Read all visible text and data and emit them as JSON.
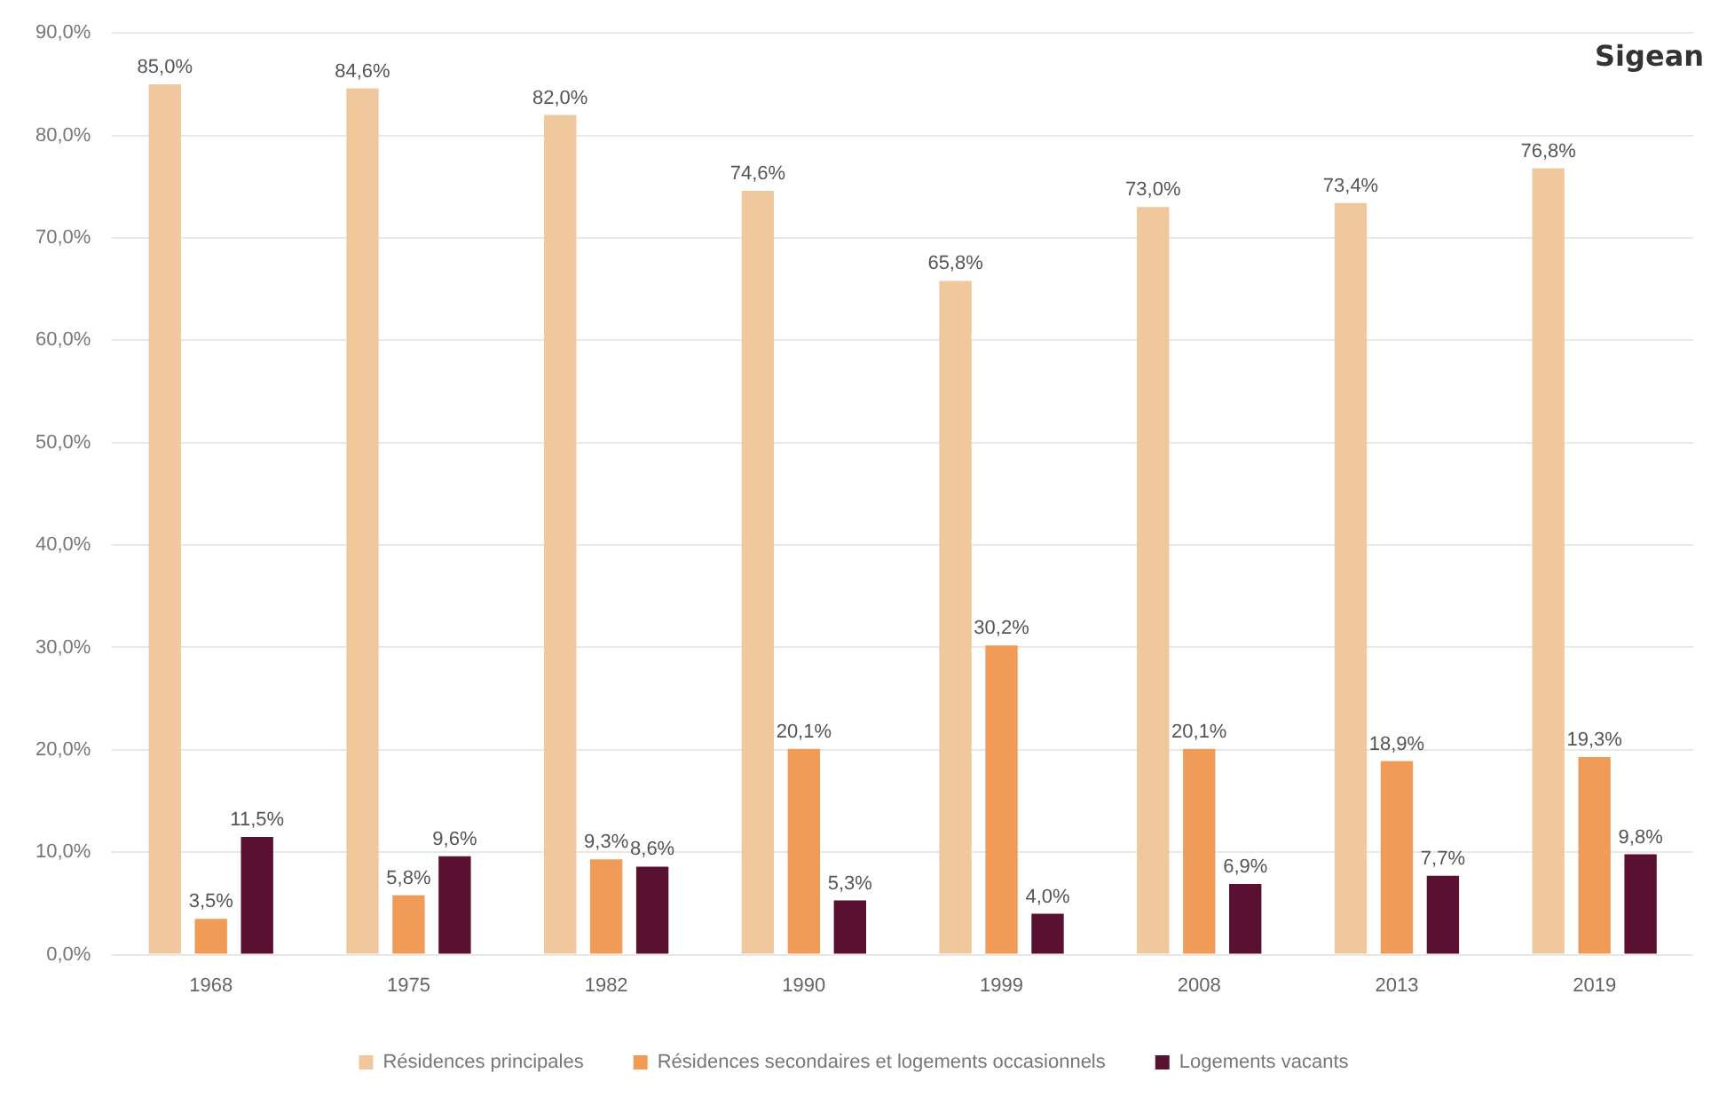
{
  "chart_data": {
    "type": "bar",
    "title": "Sigean",
    "categories": [
      "1968",
      "1975",
      "1982",
      "1990",
      "1999",
      "2008",
      "2013",
      "2019"
    ],
    "series": [
      {
        "name": "Résidences principales",
        "color": "#efc99d",
        "values": [
          85.0,
          84.6,
          82.0,
          74.6,
          65.8,
          73.0,
          73.4,
          76.8
        ],
        "value_labels": [
          "85,0%",
          "84,6%",
          "82,0%",
          "74,6%",
          "65,8%",
          "73,0%",
          "73,4%",
          "76,8%"
        ]
      },
      {
        "name": "Résidences secondaires et logements occasionnels",
        "color": "#f09c58",
        "values": [
          3.5,
          5.8,
          9.3,
          20.1,
          30.2,
          20.1,
          18.9,
          19.3
        ],
        "value_labels": [
          "3,5%",
          "5,8%",
          "9,3%",
          "20,1%",
          "30,2%",
          "20,1%",
          "18,9%",
          "19,3%"
        ]
      },
      {
        "name": "Logements vacants",
        "color": "#5a1030",
        "values": [
          11.5,
          9.6,
          8.6,
          5.3,
          4.0,
          6.9,
          7.7,
          9.8
        ],
        "value_labels": [
          "11,5%",
          "9,6%",
          "8,6%",
          "5,3%",
          "4,0%",
          "6,9%",
          "7,7%",
          "9,8%"
        ]
      }
    ],
    "ylim": [
      0,
      90
    ],
    "yticks": [
      {
        "value": 0,
        "label": "0,0%"
      },
      {
        "value": 10,
        "label": "10,0%"
      },
      {
        "value": 20,
        "label": "20,0%"
      },
      {
        "value": 30,
        "label": "30,0%"
      },
      {
        "value": 40,
        "label": "40,0%"
      },
      {
        "value": 50,
        "label": "50,0%"
      },
      {
        "value": 60,
        "label": "60,0%"
      },
      {
        "value": 70,
        "label": "70,0%"
      },
      {
        "value": 80,
        "label": "80,0%"
      },
      {
        "value": 90,
        "label": "90,0%"
      }
    ],
    "grid": "y",
    "legend": "bottom"
  }
}
